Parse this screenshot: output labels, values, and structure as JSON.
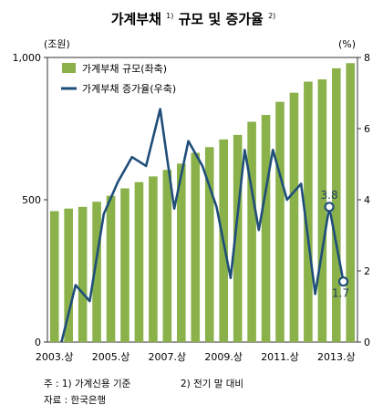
{
  "chart_data": {
    "type": "bar-line-combo",
    "title_main": "가계부채",
    "title_sup1": "1)",
    "title_mid": " 규모 및 증가율",
    "title_sup2": "2)",
    "y_left_unit": "(조원)",
    "y_right_unit": "(%)",
    "y_left_lim": [
      0,
      1000
    ],
    "y_left_ticks": [
      "0",
      "500",
      "1,000"
    ],
    "y_right_lim": [
      0,
      8
    ],
    "y_right_ticks": [
      "0",
      "2",
      "4",
      "6",
      "8"
    ],
    "x_tick_labels": [
      "2003.상",
      "2005.상",
      "2007.상",
      "2009.상",
      "2011.상",
      "2013.상"
    ],
    "legend": [
      {
        "label": "가계부채 규모(좌축)",
        "kind": "bar",
        "color": "#8ab14a"
      },
      {
        "label": "가계부채 증가율(우축)",
        "kind": "line",
        "color": "#1f4e79"
      }
    ],
    "series": [
      {
        "name": "가계부채 규모(좌축)",
        "kind": "bar",
        "values": [
          460,
          469,
          475,
          493,
          514,
          540,
          562,
          582,
          605,
          627,
          665,
          685,
          712,
          728,
          774,
          798,
          844,
          876,
          915,
          923,
          962,
          980
        ]
      },
      {
        "name": "가계부채 증가율(우축)",
        "kind": "line",
        "values": [
          0.0,
          1.6,
          1.15,
          3.6,
          4.5,
          5.2,
          4.95,
          6.55,
          3.75,
          5.65,
          4.95,
          3.8,
          1.8,
          5.4,
          3.15,
          5.4,
          4.0,
          4.45,
          1.35,
          3.8,
          1.7
        ]
      }
    ],
    "annotations": [
      "3.8",
      "1.7"
    ],
    "colors": {
      "bar": "#8ab14a",
      "line": "#1f4e79",
      "text": "#222222"
    }
  },
  "notes": {
    "note1": "주 : 1) 가계신용 기준",
    "note2": "2) 전기 말 대비",
    "source": "자료 : 한국은행"
  }
}
